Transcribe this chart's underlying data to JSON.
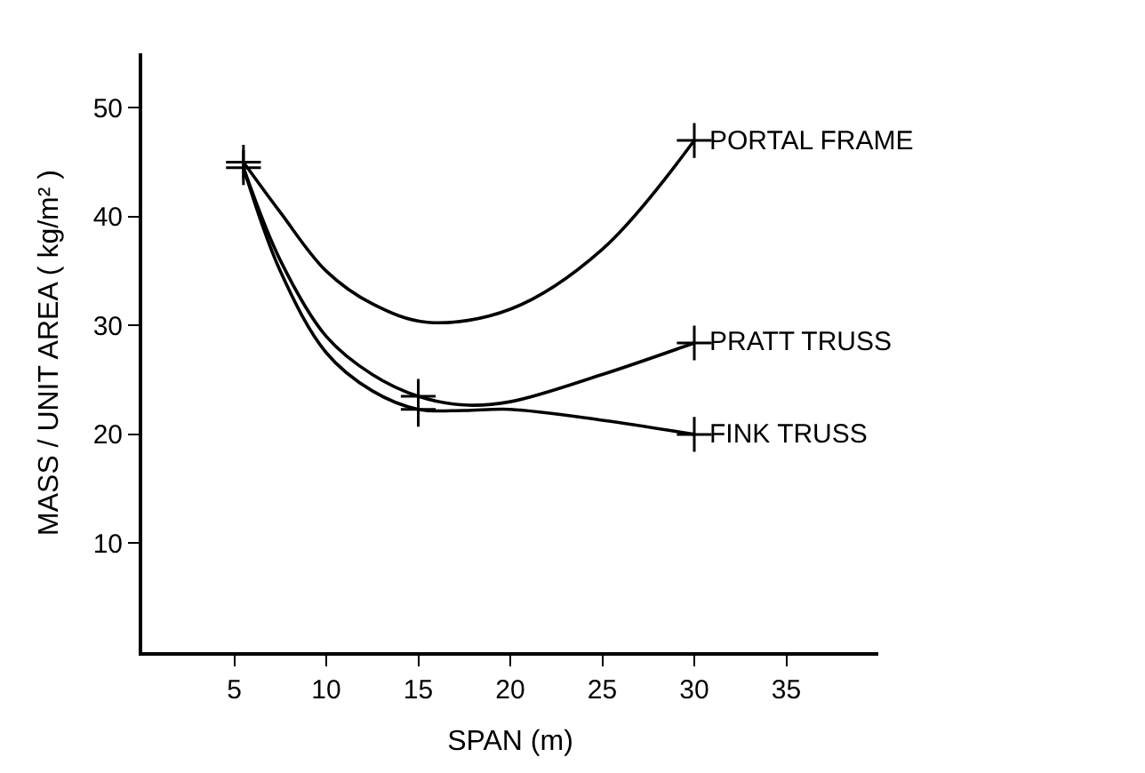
{
  "chart_data": {
    "type": "line",
    "xlabel": "SPAN (m)",
    "ylabel": "MASS / UNIT AREA ( kg/m² )",
    "xlim": [
      0,
      40
    ],
    "ylim": [
      0,
      55
    ],
    "xticks": [
      5,
      10,
      15,
      20,
      25,
      30,
      35
    ],
    "yticks": [
      10,
      20,
      30,
      40,
      50
    ],
    "legend": false,
    "marker": "none",
    "line_style": "solid",
    "series": [
      {
        "name": "PORTAL FRAME",
        "color": "#000000",
        "x": [
          5.5,
          7.5,
          10,
          12.5,
          15.5,
          20,
          25,
          30
        ],
        "values": [
          45,
          40.4,
          35,
          32,
          30.3,
          31.5,
          37,
          47
        ]
      },
      {
        "name": "PRATT TRUSS",
        "color": "#000000",
        "x": [
          5.5,
          7.5,
          10,
          12.5,
          15,
          17.5,
          20,
          25,
          30
        ],
        "values": [
          44.5,
          36,
          29,
          25.5,
          23.5,
          22.7,
          23,
          25.5,
          28.4
        ]
      },
      {
        "name": "FINK TRUSS",
        "color": "#000000",
        "x": [
          5.5,
          7.5,
          10,
          12.5,
          15,
          17.5,
          20,
          25,
          30
        ],
        "values": [
          44.5,
          35,
          27.5,
          24,
          22.3,
          22.2,
          22.3,
          21.3,
          20
        ]
      },
      {
        "type": "scatter",
        "marker": "cross",
        "color": "#000000",
        "x": [
          5.5,
          5.5,
          15,
          15,
          30,
          30,
          30
        ],
        "values": [
          45,
          44.5,
          23.5,
          22.3,
          47,
          28.4,
          20
        ]
      }
    ]
  }
}
